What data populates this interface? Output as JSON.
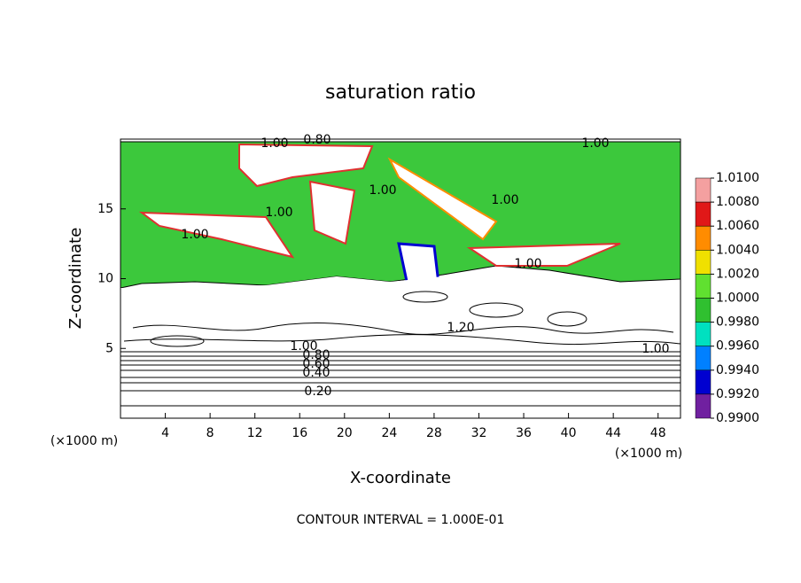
{
  "chart_data": {
    "type": "contour",
    "title": "saturation ratio",
    "x_label": "X-coordinate",
    "y_label": "Z-coordinate",
    "x_unit": "(×1000 m)",
    "xlim": [
      0,
      50
    ],
    "xticks": [
      4,
      8,
      12,
      16,
      20,
      24,
      28,
      32,
      36,
      40,
      44,
      48
    ],
    "ylim": [
      0,
      20
    ],
    "yticks": [
      5,
      10,
      15
    ],
    "colorbar": {
      "ticks": [
        {
          "value": 1.01,
          "label": "1.0100"
        },
        {
          "value": 1.008,
          "label": "1.0080"
        },
        {
          "value": 1.006,
          "label": "1.0060"
        },
        {
          "value": 1.004,
          "label": "1.0040"
        },
        {
          "value": 1.002,
          "label": "1.0020"
        },
        {
          "value": 1.0,
          "label": "1.0000"
        },
        {
          "value": 0.998,
          "label": "0.9980"
        },
        {
          "value": 0.996,
          "label": "0.9960"
        },
        {
          "value": 0.994,
          "label": "0.9940"
        },
        {
          "value": 0.992,
          "label": "0.9920"
        },
        {
          "value": 0.99,
          "label": "0.9900"
        }
      ],
      "colors": [
        "#f4a0a0",
        "#e01818",
        "#ff8c00",
        "#f0e000",
        "#60e030",
        "#30c030",
        "#00e0c0",
        "#0080ff",
        "#0000d0",
        "#7020a0"
      ]
    },
    "contour_labels": [
      "1.00",
      "0.80",
      "1.00",
      "1.00",
      "1.00",
      "1.00",
      "1.00",
      "1.00",
      "1.20",
      "1.00",
      "1.00",
      "0.80",
      "0.60",
      "0.40",
      "0.20"
    ],
    "footer": "CONTOUR INTERVAL = 1.000E-01"
  }
}
